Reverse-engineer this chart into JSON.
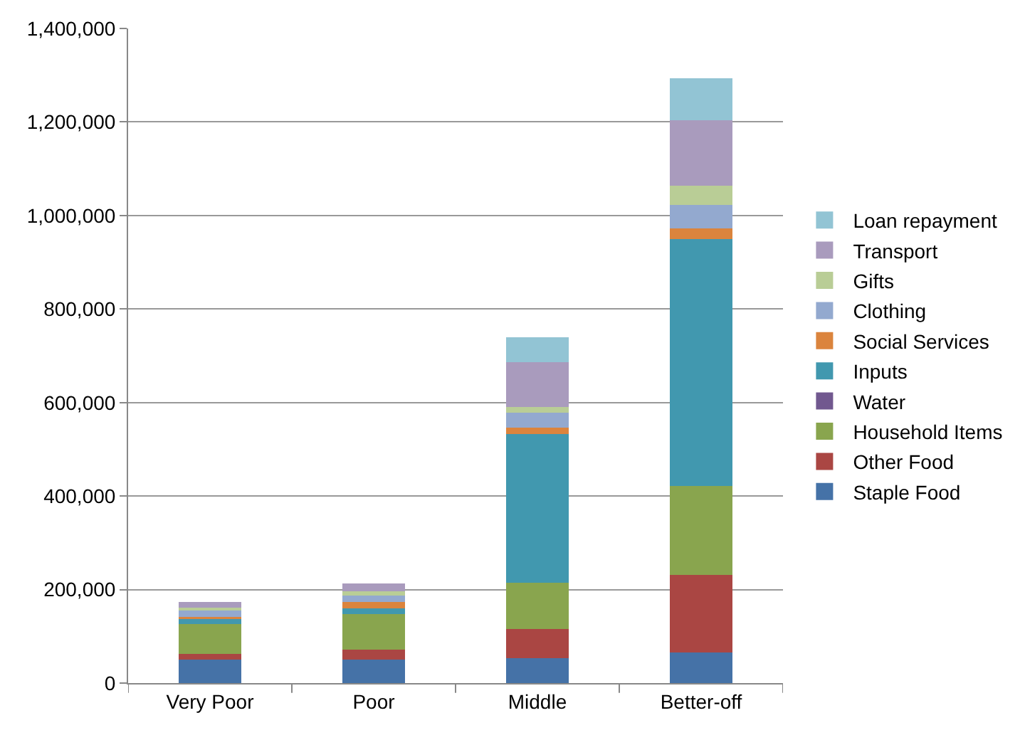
{
  "chart_data": {
    "type": "bar",
    "stacked": true,
    "categories": [
      "Very Poor",
      "Poor",
      "Middle",
      "Better-off"
    ],
    "series": [
      {
        "name": "Staple Food",
        "color": "#4572a7",
        "values": [
          50000,
          50000,
          54000,
          65000
        ]
      },
      {
        "name": "Other Food",
        "color": "#aa4643",
        "values": [
          12000,
          21000,
          62000,
          167000
        ]
      },
      {
        "name": "Household Items",
        "color": "#89a54e",
        "values": [
          65000,
          76000,
          99000,
          189000
        ]
      },
      {
        "name": "Water",
        "color": "#71588f",
        "values": [
          0,
          0,
          0,
          0
        ]
      },
      {
        "name": "Inputs",
        "color": "#4198af",
        "values": [
          10000,
          13000,
          318000,
          529000
        ]
      },
      {
        "name": "Social Services",
        "color": "#db843d",
        "values": [
          4000,
          14000,
          13000,
          23000
        ]
      },
      {
        "name": "Clothing",
        "color": "#93a9cf",
        "values": [
          15000,
          13000,
          32000,
          50000
        ]
      },
      {
        "name": "Gifts",
        "color": "#b9cd96",
        "values": [
          5000,
          10000,
          13000,
          40000
        ]
      },
      {
        "name": "Transport",
        "color": "#a99bbd",
        "values": [
          13000,
          16000,
          96000,
          141000
        ]
      },
      {
        "name": "Loan repayment",
        "color": "#92c4d4",
        "values": [
          0,
          0,
          52000,
          90000
        ]
      }
    ],
    "ylim": [
      0,
      1400000
    ],
    "yticks": [
      {
        "value": 0,
        "label": "0"
      },
      {
        "value": 200000,
        "label": "200,000"
      },
      {
        "value": 400000,
        "label": "400,000"
      },
      {
        "value": 600000,
        "label": "600,000"
      },
      {
        "value": 800000,
        "label": "800,000"
      },
      {
        "value": 1000000,
        "label": "1,000,000"
      },
      {
        "value": 1200000,
        "label": "1,200,000"
      },
      {
        "value": 1400000,
        "label": "1,400,000"
      }
    ],
    "grid": "y",
    "legend": "right"
  }
}
